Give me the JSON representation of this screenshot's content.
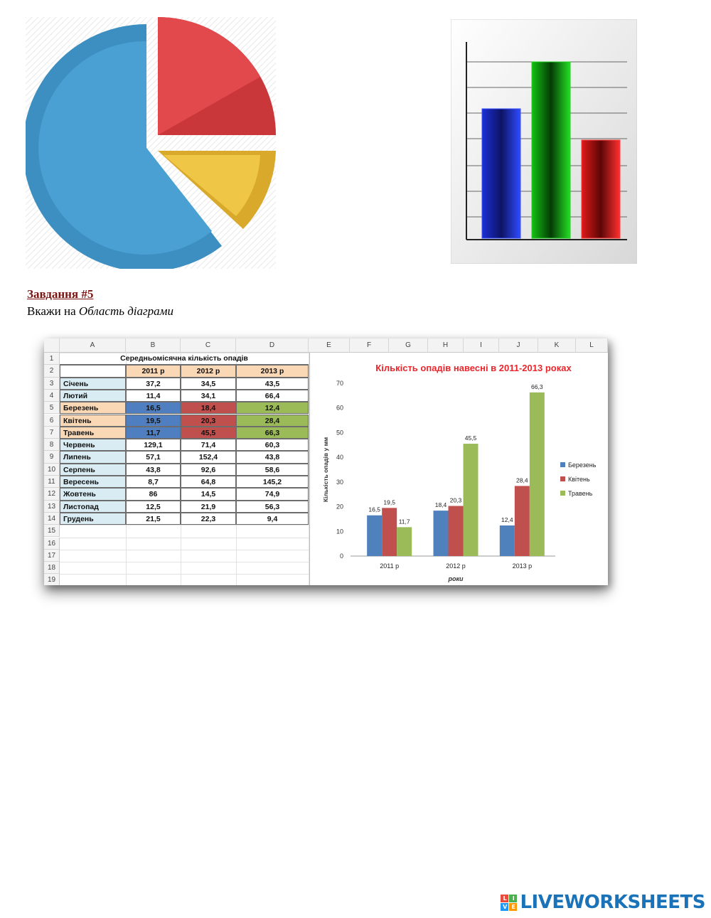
{
  "task": {
    "title": "Завдання #5",
    "instruction_prefix": "Вкажи на ",
    "instruction_italic": "Область діаграми"
  },
  "spreadsheet": {
    "column_headers": [
      "A",
      "B",
      "C",
      "D",
      "E",
      "F",
      "G",
      "H",
      "I",
      "J",
      "K",
      "L"
    ],
    "row_numbers": [
      "1",
      "2",
      "3",
      "4",
      "5",
      "6",
      "7",
      "8",
      "9",
      "10",
      "11",
      "12",
      "13",
      "14",
      "15",
      "16",
      "17",
      "18",
      "19"
    ],
    "table_title": "Середньомісячна кількість опадів",
    "year_headers": [
      "2011 р",
      "2012 р",
      "2013 р"
    ],
    "rows": [
      {
        "month": "Січень",
        "v": [
          "37,2",
          "34,5",
          "43,5"
        ]
      },
      {
        "month": "Лютий",
        "v": [
          "11,4",
          "34,1",
          "66,4"
        ]
      },
      {
        "month": "Березень",
        "v": [
          "16,5",
          "18,4",
          "12,4"
        ]
      },
      {
        "month": "Квітень",
        "v": [
          "19,5",
          "20,3",
          "28,4"
        ]
      },
      {
        "month": "Травень",
        "v": [
          "11,7",
          "45,5",
          "66,3"
        ]
      },
      {
        "month": "Червень",
        "v": [
          "129,1",
          "71,4",
          "60,3"
        ]
      },
      {
        "month": "Липень",
        "v": [
          "57,1",
          "152,4",
          "43,8"
        ]
      },
      {
        "month": "Серпень",
        "v": [
          "43,8",
          "92,6",
          "58,6"
        ]
      },
      {
        "month": "Вересень",
        "v": [
          "8,7",
          "64,8",
          "145,2"
        ]
      },
      {
        "month": "Жовтень",
        "v": [
          "86",
          "14,5",
          "74,9"
        ]
      },
      {
        "month": "Листопад",
        "v": [
          "12,5",
          "21,9",
          "56,3"
        ]
      },
      {
        "month": "Грудень",
        "v": [
          "21,5",
          "22,3",
          "9,4"
        ]
      }
    ],
    "colors": {
      "month_fill": "#d9ecf4",
      "header_fill": "#fad7b5",
      "spring_label_fill": "#fad7b5",
      "blue": "#4f7fc1",
      "red": "#c0504d",
      "green": "#9bbb59"
    }
  },
  "chart_data": {
    "type": "bar",
    "title": "Кількість опадів навесні в 2011-2013 роках",
    "categories": [
      "2011 р",
      "2012 р",
      "2013 р"
    ],
    "series": [
      {
        "name": "Березень",
        "values": [
          16.5,
          18.4,
          12.4
        ],
        "labels": [
          "16,5",
          "18,4",
          "12,4"
        ],
        "color": "#4f81bd"
      },
      {
        "name": "Квітень",
        "values": [
          19.5,
          20.3,
          28.4
        ],
        "labels": [
          "19,5",
          "20,3",
          "28,4"
        ],
        "color": "#c0504d"
      },
      {
        "name": "Травень",
        "values": [
          11.7,
          45.5,
          66.3
        ],
        "labels": [
          "11,7",
          "45,5",
          "66,3"
        ],
        "color": "#9bbb59"
      }
    ],
    "xlabel": "роки",
    "ylabel": "Кількість опадів у мм",
    "ylim": [
      0,
      70
    ],
    "yticks": [
      "0",
      "10",
      "20",
      "30",
      "40",
      "50",
      "60",
      "70"
    ],
    "legend_position": "right",
    "title_color": "#e8262b"
  },
  "brand": {
    "text": "LIVEWORKSHEETS",
    "logo_letters": [
      "L",
      "I",
      "V",
      "E"
    ],
    "logo_colors": [
      "#e94b3c",
      "#4caf50",
      "#2196f3",
      "#ff9800"
    ]
  }
}
